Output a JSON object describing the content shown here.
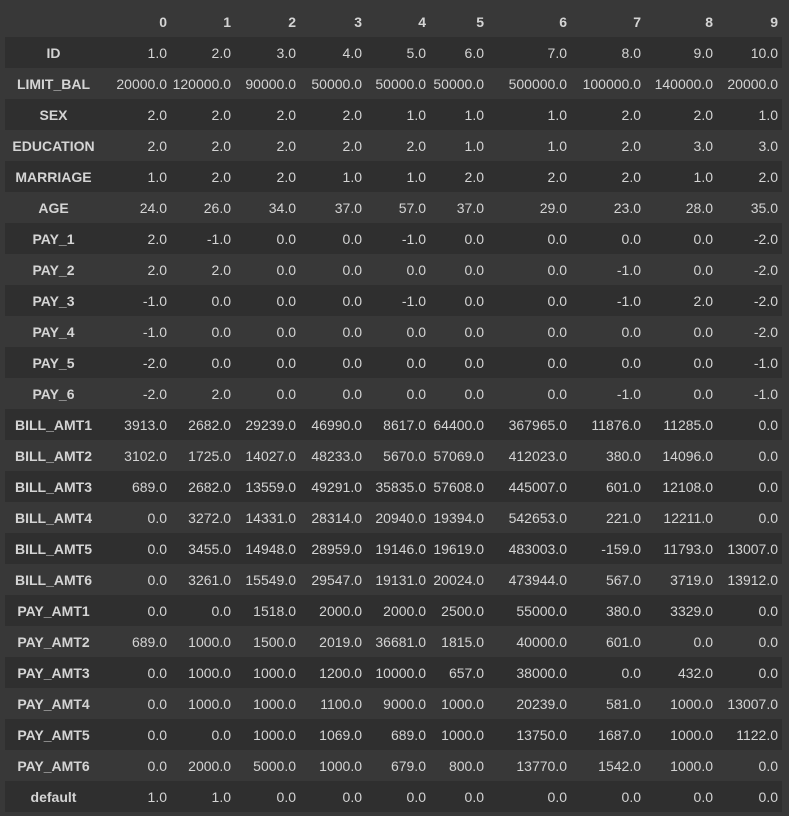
{
  "columns": [
    "",
    "0",
    "1",
    "2",
    "3",
    "4",
    "5",
    "6",
    "7",
    "8",
    "9"
  ],
  "rows": [
    {
      "label": "ID",
      "cells": [
        "1.0",
        "2.0",
        "3.0",
        "4.0",
        "5.0",
        "6.0",
        "7.0",
        "8.0",
        "9.0",
        "10.0"
      ]
    },
    {
      "label": "LIMIT_BAL",
      "cells": [
        "20000.0",
        "120000.0",
        "90000.0",
        "50000.0",
        "50000.0",
        "50000.0",
        "500000.0",
        "100000.0",
        "140000.0",
        "20000.0"
      ]
    },
    {
      "label": "SEX",
      "cells": [
        "2.0",
        "2.0",
        "2.0",
        "2.0",
        "1.0",
        "1.0",
        "1.0",
        "2.0",
        "2.0",
        "1.0"
      ]
    },
    {
      "label": "EDUCATION",
      "cells": [
        "2.0",
        "2.0",
        "2.0",
        "2.0",
        "2.0",
        "1.0",
        "1.0",
        "2.0",
        "3.0",
        "3.0"
      ]
    },
    {
      "label": "MARRIAGE",
      "cells": [
        "1.0",
        "2.0",
        "2.0",
        "1.0",
        "1.0",
        "2.0",
        "2.0",
        "2.0",
        "1.0",
        "2.0"
      ]
    },
    {
      "label": "AGE",
      "cells": [
        "24.0",
        "26.0",
        "34.0",
        "37.0",
        "57.0",
        "37.0",
        "29.0",
        "23.0",
        "28.0",
        "35.0"
      ]
    },
    {
      "label": "PAY_1",
      "cells": [
        "2.0",
        "-1.0",
        "0.0",
        "0.0",
        "-1.0",
        "0.0",
        "0.0",
        "0.0",
        "0.0",
        "-2.0"
      ]
    },
    {
      "label": "PAY_2",
      "cells": [
        "2.0",
        "2.0",
        "0.0",
        "0.0",
        "0.0",
        "0.0",
        "0.0",
        "-1.0",
        "0.0",
        "-2.0"
      ]
    },
    {
      "label": "PAY_3",
      "cells": [
        "-1.0",
        "0.0",
        "0.0",
        "0.0",
        "-1.0",
        "0.0",
        "0.0",
        "-1.0",
        "2.0",
        "-2.0"
      ]
    },
    {
      "label": "PAY_4",
      "cells": [
        "-1.0",
        "0.0",
        "0.0",
        "0.0",
        "0.0",
        "0.0",
        "0.0",
        "0.0",
        "0.0",
        "-2.0"
      ]
    },
    {
      "label": "PAY_5",
      "cells": [
        "-2.0",
        "0.0",
        "0.0",
        "0.0",
        "0.0",
        "0.0",
        "0.0",
        "0.0",
        "0.0",
        "-1.0"
      ]
    },
    {
      "label": "PAY_6",
      "cells": [
        "-2.0",
        "2.0",
        "0.0",
        "0.0",
        "0.0",
        "0.0",
        "0.0",
        "-1.0",
        "0.0",
        "-1.0"
      ]
    },
    {
      "label": "BILL_AMT1",
      "cells": [
        "3913.0",
        "2682.0",
        "29239.0",
        "46990.0",
        "8617.0",
        "64400.0",
        "367965.0",
        "11876.0",
        "11285.0",
        "0.0"
      ]
    },
    {
      "label": "BILL_AMT2",
      "cells": [
        "3102.0",
        "1725.0",
        "14027.0",
        "48233.0",
        "5670.0",
        "57069.0",
        "412023.0",
        "380.0",
        "14096.0",
        "0.0"
      ]
    },
    {
      "label": "BILL_AMT3",
      "cells": [
        "689.0",
        "2682.0",
        "13559.0",
        "49291.0",
        "35835.0",
        "57608.0",
        "445007.0",
        "601.0",
        "12108.0",
        "0.0"
      ]
    },
    {
      "label": "BILL_AMT4",
      "cells": [
        "0.0",
        "3272.0",
        "14331.0",
        "28314.0",
        "20940.0",
        "19394.0",
        "542653.0",
        "221.0",
        "12211.0",
        "0.0"
      ]
    },
    {
      "label": "BILL_AMT5",
      "cells": [
        "0.0",
        "3455.0",
        "14948.0",
        "28959.0",
        "19146.0",
        "19619.0",
        "483003.0",
        "-159.0",
        "11793.0",
        "13007.0"
      ]
    },
    {
      "label": "BILL_AMT6",
      "cells": [
        "0.0",
        "3261.0",
        "15549.0",
        "29547.0",
        "19131.0",
        "20024.0",
        "473944.0",
        "567.0",
        "3719.0",
        "13912.0"
      ]
    },
    {
      "label": "PAY_AMT1",
      "cells": [
        "0.0",
        "0.0",
        "1518.0",
        "2000.0",
        "2000.0",
        "2500.0",
        "55000.0",
        "380.0",
        "3329.0",
        "0.0"
      ]
    },
    {
      "label": "PAY_AMT2",
      "cells": [
        "689.0",
        "1000.0",
        "1500.0",
        "2019.0",
        "36681.0",
        "1815.0",
        "40000.0",
        "601.0",
        "0.0",
        "0.0"
      ]
    },
    {
      "label": "PAY_AMT3",
      "cells": [
        "0.0",
        "1000.0",
        "1000.0",
        "1200.0",
        "10000.0",
        "657.0",
        "38000.0",
        "0.0",
        "432.0",
        "0.0"
      ]
    },
    {
      "label": "PAY_AMT4",
      "cells": [
        "0.0",
        "1000.0",
        "1000.0",
        "1100.0",
        "9000.0",
        "1000.0",
        "20239.0",
        "581.0",
        "1000.0",
        "13007.0"
      ]
    },
    {
      "label": "PAY_AMT5",
      "cells": [
        "0.0",
        "0.0",
        "1000.0",
        "1069.0",
        "689.0",
        "1000.0",
        "13750.0",
        "1687.0",
        "1000.0",
        "1122.0"
      ]
    },
    {
      "label": "PAY_AMT6",
      "cells": [
        "0.0",
        "2000.0",
        "5000.0",
        "1000.0",
        "679.0",
        "800.0",
        "13770.0",
        "1542.0",
        "1000.0",
        "0.0"
      ]
    },
    {
      "label": "default",
      "cells": [
        "1.0",
        "1.0",
        "0.0",
        "0.0",
        "0.0",
        "0.0",
        "0.0",
        "0.0",
        "0.0",
        "0.0"
      ]
    }
  ]
}
